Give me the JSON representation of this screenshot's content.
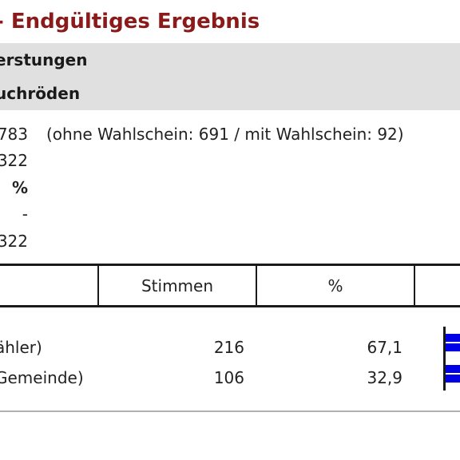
{
  "header": {
    "title": "- Endgültiges Ergebnis",
    "band1": "erstungen",
    "band2": "uchröden"
  },
  "info": [
    {
      "value": "783",
      "note": "(ohne Wahlschein: 691 / mit Wahlschein: 92)"
    },
    {
      "value": "322"
    },
    {
      "value": "%"
    },
    {
      "value": "-"
    },
    {
      "value": "322"
    }
  ],
  "table": {
    "headers": {
      "stimmen": "Stimmen",
      "percent": "%"
    },
    "rows": [
      {
        "name": "ähler)",
        "votes": "216",
        "percent": "67,1",
        "share": 67.1
      },
      {
        "name": "Gemeinde)",
        "votes": "106",
        "percent": "32,9",
        "share": 32.9
      }
    ]
  },
  "colors": {
    "title": "#8b1a1a",
    "band": "#e0e0e0",
    "bar": "#0000e6"
  }
}
